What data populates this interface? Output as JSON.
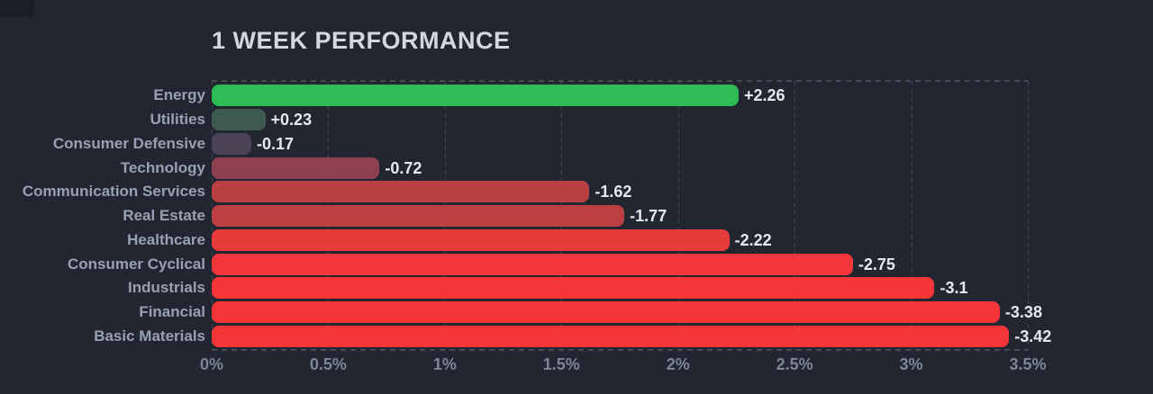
{
  "title": "1 WEEK PERFORMANCE",
  "colors": {
    "background": "#222631",
    "title": "#d4d7de",
    "row_label": "#9aa0b3",
    "value_label": "#e7e8eb",
    "axis_label": "#7e8596",
    "gridline": "#3d4350",
    "positive": "#2ebd55",
    "negative": "#f53538"
  },
  "chart_data": {
    "type": "bar",
    "orientation": "horizontal",
    "title": "1 WEEK PERFORMANCE",
    "categories": [
      "Energy",
      "Utilities",
      "Consumer Defensive",
      "Technology",
      "Communication Services",
      "Real Estate",
      "Healthcare",
      "Consumer Cyclical",
      "Industrials",
      "Financial",
      "Basic Materials"
    ],
    "values": [
      2.26,
      0.23,
      -0.17,
      -0.72,
      -1.62,
      -1.77,
      -2.22,
      -2.75,
      -3.1,
      -3.38,
      -3.42
    ],
    "value_labels": [
      "+2.26",
      "+0.23",
      "-0.17",
      "-0.72",
      "-1.62",
      "-1.77",
      "-2.22",
      "-2.75",
      "-3.1",
      "-3.38",
      "-3.42"
    ],
    "bar_colors": [
      "#2ebd55",
      "#3e5a50",
      "#4a4255",
      "#8d4150",
      "#b84043",
      "#bc3f42",
      "#e63a3b",
      "#f4373a",
      "#f53538",
      "#f53538",
      "#f53538"
    ],
    "bar_lengths_pct_abs": [
      2.26,
      0.23,
      0.17,
      0.72,
      1.62,
      1.77,
      2.22,
      2.75,
      3.1,
      3.38,
      3.42
    ],
    "xlabel": "",
    "ylabel": "",
    "xlim": [
      0,
      3.5
    ],
    "x_ticks": [
      "0%",
      "0.5%",
      "1%",
      "1.5%",
      "2%",
      "2.5%",
      "3%",
      "3.5%"
    ],
    "grid": "dashed-vertical",
    "legend": "none"
  }
}
